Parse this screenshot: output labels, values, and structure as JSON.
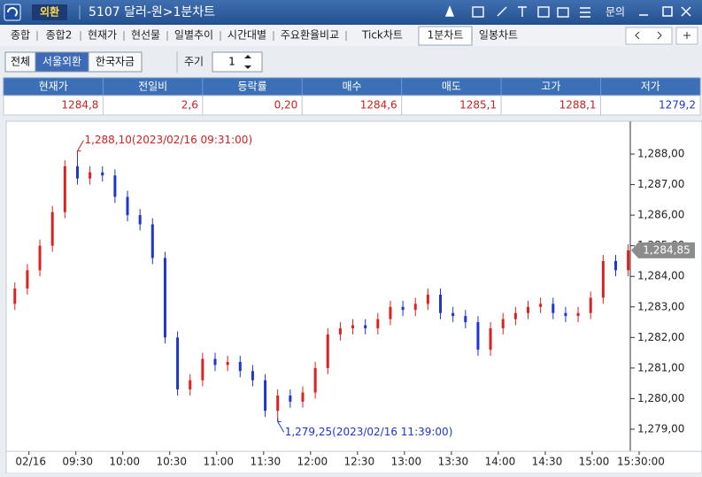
{
  "window": {
    "badge": "외환",
    "title": "5107 달러-원>1분차트",
    "help": "문의"
  },
  "tabs": [
    "종합",
    "종합2",
    "현재가",
    "현선물",
    "일별추이",
    "시간대별",
    "주요환율비교",
    "Tick차트",
    "1분차트",
    "일봉차트"
  ],
  "active_tab": 8,
  "markets": [
    "전체",
    "서울외환",
    "한국자금"
  ],
  "active_market": 1,
  "period_label": "주기",
  "period_value": "1",
  "table": {
    "headers": [
      "현재가",
      "전일비",
      "등락률",
      "매수",
      "매도",
      "고가",
      "저가"
    ],
    "values": [
      "1284,8",
      "2,6",
      "0,20",
      "1284,6",
      "1285,1",
      "1288,1",
      "1279,2"
    ]
  },
  "chart_data": {
    "type": "candlestick",
    "x": [
      531,
      539,
      547,
      555,
      563,
      571,
      579,
      587,
      595,
      603,
      611,
      619,
      627,
      635,
      643,
      651,
      659,
      667,
      675,
      683,
      691,
      699,
      707,
      715,
      723,
      731,
      739,
      747,
      755,
      763,
      771,
      779,
      787,
      795,
      803,
      811,
      819,
      827,
      835,
      843,
      851,
      859,
      867,
      875,
      883,
      891,
      899,
      907,
      915,
      923
    ],
    "open": [
      1283.1,
      1283.6,
      1284.2,
      1285.0,
      1286.1,
      1287.6,
      1287.2,
      1287.4,
      1287.3,
      1286.6,
      1286.0,
      1285.7,
      1284.6,
      1282.0,
      1280.3,
      1280.6,
      1281.3,
      1281.1,
      1281.2,
      1280.9,
      1280.6,
      1279.6,
      1280.1,
      1279.9,
      1280.2,
      1281.0,
      1282.1,
      1282.3,
      1282.4,
      1282.3,
      1282.6,
      1283.0,
      1282.9,
      1283.1,
      1283.4,
      1282.8,
      1282.7,
      1282.5,
      1281.6,
      1282.3,
      1282.6,
      1282.8,
      1283.0,
      1283.1,
      1282.8,
      1282.7,
      1282.8,
      1283.3,
      1284.5,
      1284.2
    ],
    "high": [
      1283.8,
      1284.4,
      1285.2,
      1286.3,
      1287.8,
      1288.1,
      1287.6,
      1287.6,
      1287.5,
      1286.8,
      1286.2,
      1285.9,
      1284.8,
      1282.2,
      1280.8,
      1281.5,
      1281.5,
      1281.4,
      1281.4,
      1281.1,
      1280.8,
      1280.3,
      1280.3,
      1280.4,
      1281.2,
      1282.3,
      1282.5,
      1282.6,
      1282.6,
      1282.8,
      1283.2,
      1283.2,
      1283.3,
      1283.6,
      1283.6,
      1283.0,
      1282.9,
      1282.7,
      1282.5,
      1282.8,
      1283.0,
      1283.2,
      1283.3,
      1283.3,
      1283.0,
      1283.0,
      1283.5,
      1284.7,
      1284.7,
      1285.05
    ],
    "low": [
      1282.9,
      1283.4,
      1284.0,
      1284.8,
      1285.9,
      1287.0,
      1287.0,
      1287.1,
      1286.4,
      1285.8,
      1285.5,
      1284.4,
      1281.8,
      1280.1,
      1280.1,
      1280.4,
      1280.9,
      1280.9,
      1280.7,
      1280.4,
      1279.4,
      1279.25,
      1279.7,
      1279.7,
      1280.0,
      1280.8,
      1281.9,
      1282.1,
      1282.1,
      1282.1,
      1282.4,
      1282.7,
      1282.7,
      1282.9,
      1282.6,
      1282.5,
      1282.3,
      1281.4,
      1281.4,
      1282.1,
      1282.4,
      1282.6,
      1282.8,
      1282.6,
      1282.5,
      1282.5,
      1282.6,
      1283.1,
      1284.0,
      1284.0
    ],
    "close": [
      1283.6,
      1284.2,
      1285.0,
      1286.1,
      1287.6,
      1287.2,
      1287.4,
      1287.3,
      1286.6,
      1286.0,
      1285.7,
      1284.6,
      1282.0,
      1280.3,
      1280.6,
      1281.3,
      1281.1,
      1281.2,
      1280.9,
      1280.6,
      1279.6,
      1280.1,
      1279.9,
      1280.2,
      1281.0,
      1282.1,
      1282.3,
      1282.4,
      1282.3,
      1282.6,
      1283.0,
      1282.9,
      1283.1,
      1283.4,
      1282.8,
      1282.7,
      1282.5,
      1281.6,
      1282.3,
      1282.6,
      1282.8,
      1283.0,
      1283.1,
      1282.8,
      1282.7,
      1282.8,
      1283.3,
      1284.5,
      1284.2,
      1284.85
    ],
    "up_color": "#e02020",
    "down_color": "#1f35d0",
    "xlim": [
      530,
      930
    ],
    "xticks": [
      {
        "value": 540,
        "label": "02/16"
      },
      {
        "value": 570,
        "label": "09:30"
      },
      {
        "value": 600,
        "label": "10:00"
      },
      {
        "value": 630,
        "label": "10:30"
      },
      {
        "value": 660,
        "label": "11:00"
      },
      {
        "value": 690,
        "label": "11:30"
      },
      {
        "value": 720,
        "label": "12:00"
      },
      {
        "value": 750,
        "label": "12:30"
      },
      {
        "value": 780,
        "label": "13:00"
      },
      {
        "value": 810,
        "label": "13:30"
      },
      {
        "value": 840,
        "label": "14:00"
      },
      {
        "value": 870,
        "label": "14:30"
      },
      {
        "value": 900,
        "label": "15:00"
      },
      {
        "value": 930,
        "label": "15:30:00"
      }
    ],
    "ylim": [
      1278.42,
      1289.13
    ],
    "yticks": [
      {
        "value": 1279,
        "label": "1,279,00"
      },
      {
        "value": 1280,
        "label": "1,280,00"
      },
      {
        "value": 1281,
        "label": "1,281,00"
      },
      {
        "value": 1282,
        "label": "1,282,00"
      },
      {
        "value": 1283,
        "label": "1,283,00"
      },
      {
        "value": 1284,
        "label": "1,284,00"
      },
      {
        "value": 1285,
        "label": "1,285,00"
      },
      {
        "value": 1286,
        "label": "1,286,00"
      },
      {
        "value": 1287,
        "label": "1,287,00"
      },
      {
        "value": 1288,
        "label": "1,288,00"
      }
    ],
    "annotations": [
      {
        "x": 571,
        "value": 1288.1,
        "label": "1,288,10(2023/02/16 09:31:00)",
        "color": "#d02020"
      },
      {
        "x": 699,
        "value": 1279.25,
        "label": "1,279,25(2023/02/16 11:39:00)",
        "color": "#1f35d0"
      }
    ],
    "last_price": {
      "value": 1284.85,
      "label": "1,284,85"
    }
  }
}
